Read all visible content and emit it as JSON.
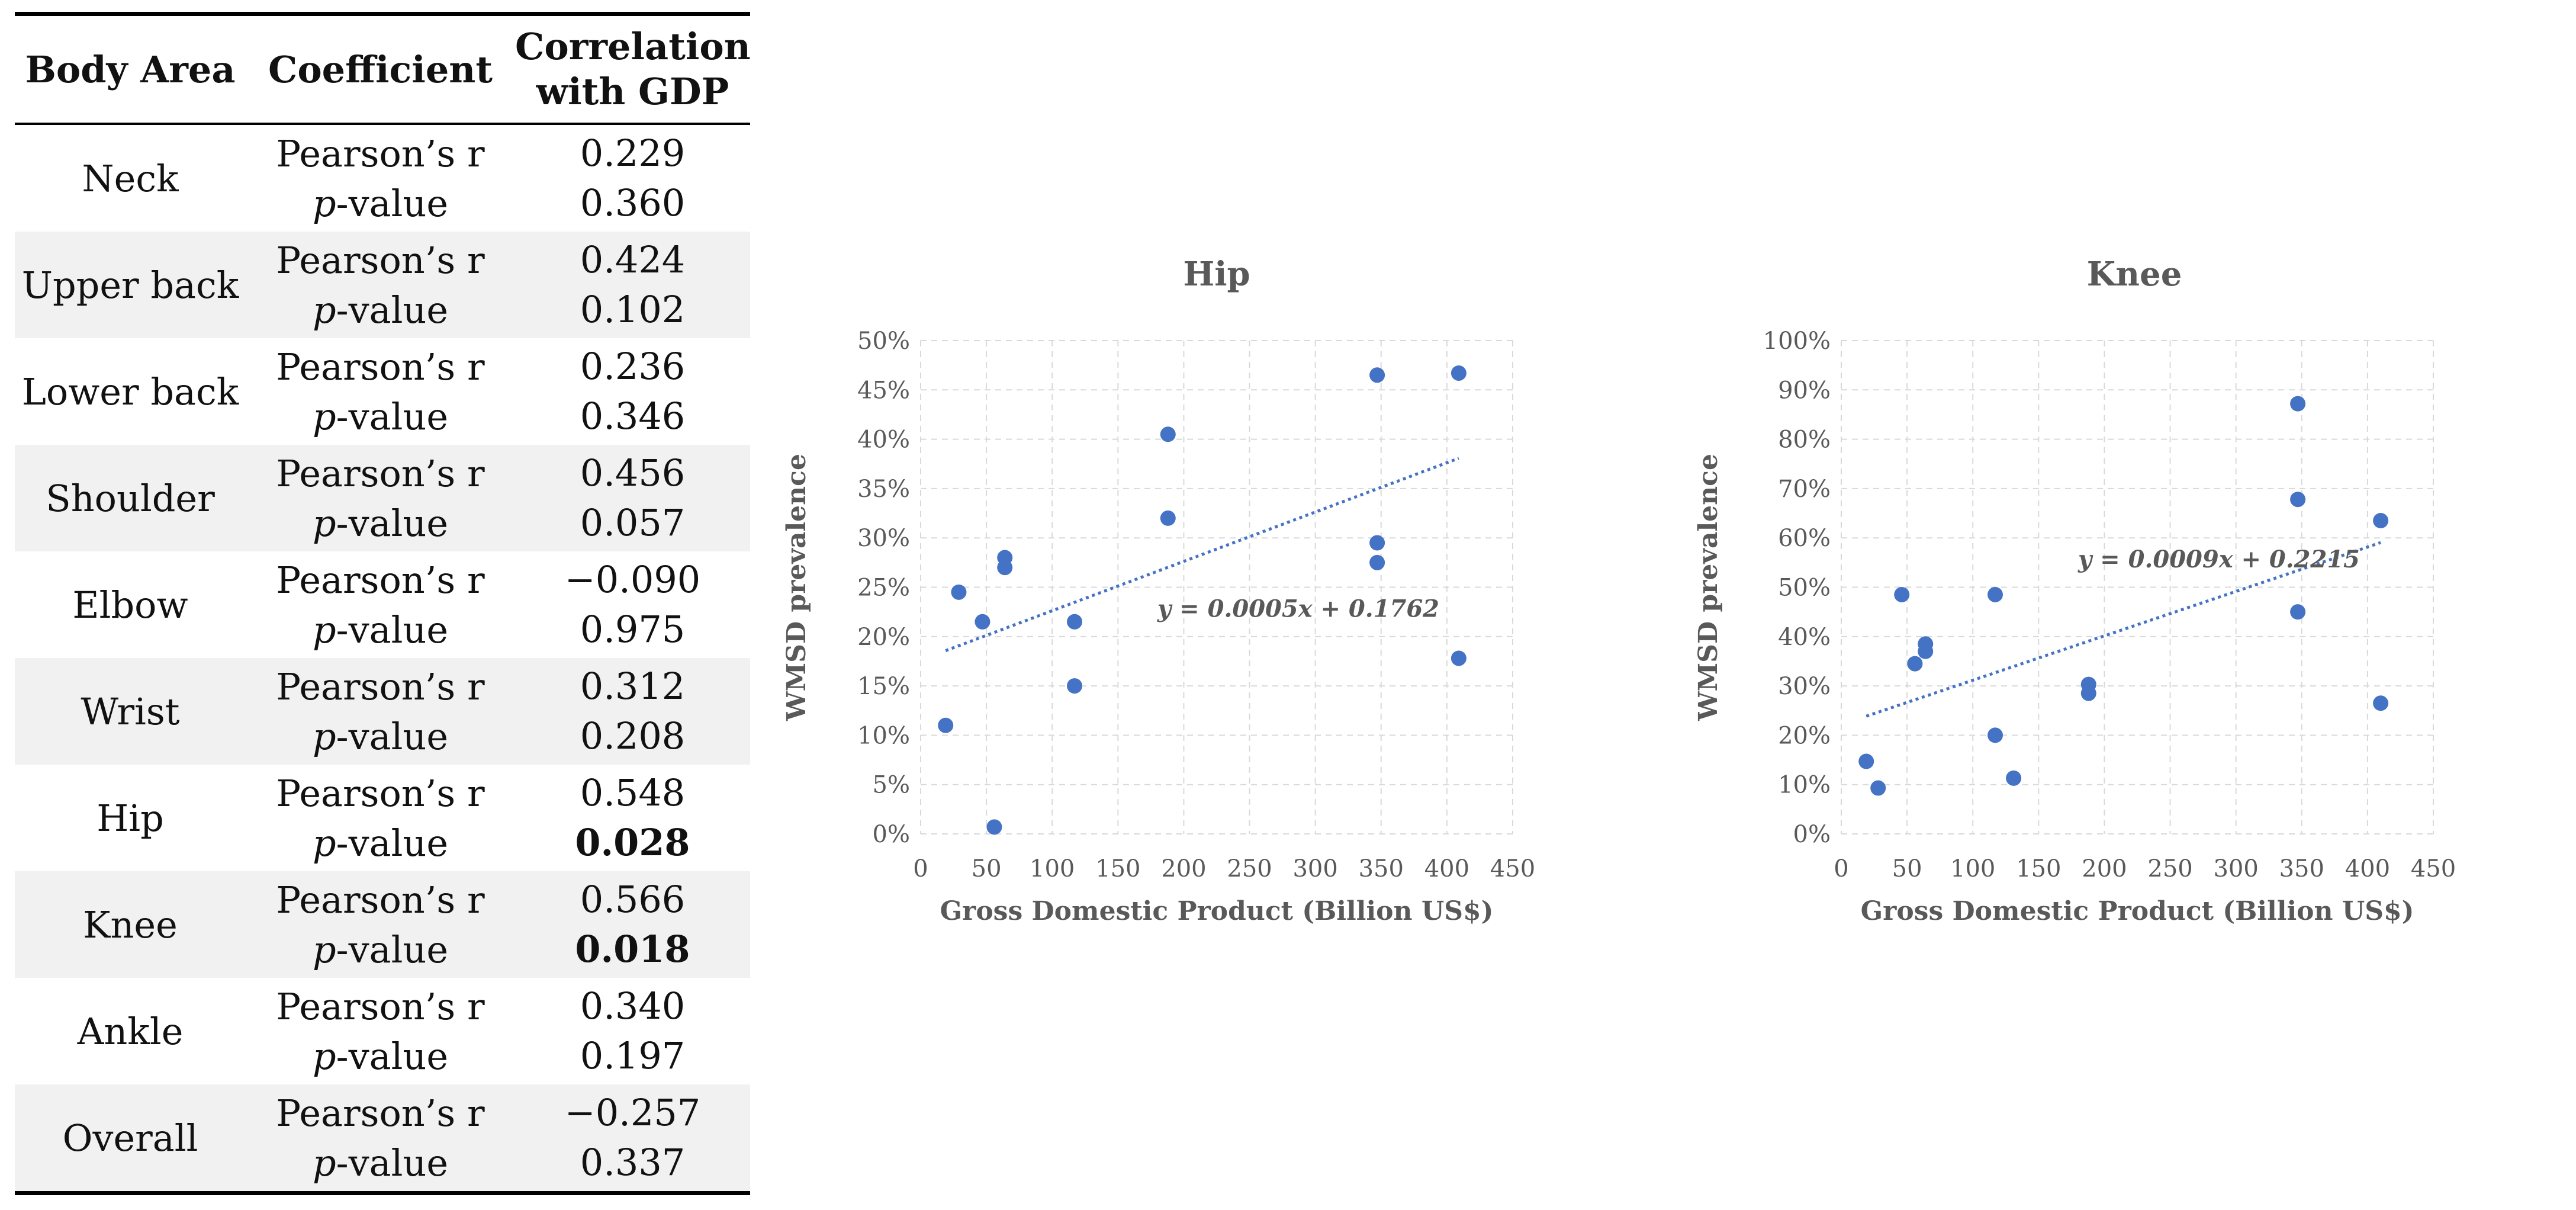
{
  "table": {
    "headers": [
      "Body Area",
      "Coefficient",
      "Correlation",
      "with GDP"
    ],
    "coef_labels": {
      "pearson": "Pearson’s r",
      "p_prefix": "p",
      "p_suffix": "-value"
    },
    "rows": [
      {
        "area": "Neck",
        "r": "0.229",
        "p": "0.360",
        "p_bold": false
      },
      {
        "area": "Upper back",
        "r": "0.424",
        "p": "0.102",
        "p_bold": false
      },
      {
        "area": "Lower back",
        "r": "0.236",
        "p": "0.346",
        "p_bold": false
      },
      {
        "area": "Shoulder",
        "r": "0.456",
        "p": "0.057",
        "p_bold": false
      },
      {
        "area": "Elbow",
        "r": "−0.090",
        "p": "0.975",
        "p_bold": false
      },
      {
        "area": "Wrist",
        "r": "0.312",
        "p": "0.208",
        "p_bold": false
      },
      {
        "area": "Hip",
        "r": "0.548",
        "p": "0.028",
        "p_bold": true
      },
      {
        "area": "Knee",
        "r": "0.566",
        "p": "0.018",
        "p_bold": true
      },
      {
        "area": "Ankle",
        "r": "0.340",
        "p": "0.197",
        "p_bold": false
      },
      {
        "area": "Overall",
        "r": "−0.257",
        "p": "0.337",
        "p_bold": false
      }
    ]
  },
  "chart_data": [
    {
      "type": "scatter",
      "title": "Hip",
      "xlabel": "Gross Domestic Product (Billion US$)",
      "ylabel": "WMSD prevalence",
      "xlim": [
        0,
        450
      ],
      "ylim": [
        0,
        0.5
      ],
      "xticks": [
        "0",
        "50",
        "100",
        "150",
        "200",
        "250",
        "300",
        "350",
        "400",
        "450"
      ],
      "yticks": [
        "0%",
        "5%",
        "10%",
        "15%",
        "20%",
        "25%",
        "30%",
        "35%",
        "40%",
        "45%",
        "50%"
      ],
      "grid": true,
      "point_color": "#4472c4",
      "x": [
        19,
        29,
        47,
        56,
        64,
        64,
        117,
        117,
        188,
        188,
        347,
        347,
        347,
        409,
        409
      ],
      "y": [
        0.11,
        0.245,
        0.215,
        0.007,
        0.28,
        0.27,
        0.215,
        0.15,
        0.405,
        0.32,
        0.465,
        0.295,
        0.275,
        0.467,
        0.178
      ],
      "trendline": {
        "slope": 0.0005,
        "intercept": 0.1762,
        "x_range": [
          19,
          409
        ],
        "label": "y = 0.0005x + 0.1762",
        "label_at": [
          180,
          0.22
        ]
      }
    },
    {
      "type": "scatter",
      "title": "Knee",
      "xlabel": "Gross Domestic Product (Billion US$)",
      "ylabel": "WMSD prevalence",
      "xlim": [
        0,
        450
      ],
      "ylim": [
        0,
        1.0
      ],
      "xticks": [
        "0",
        "50",
        "100",
        "150",
        "200",
        "250",
        "300",
        "350",
        "400",
        "450"
      ],
      "yticks": [
        "0%",
        "10%",
        "20%",
        "30%",
        "40%",
        "50%",
        "60%",
        "70%",
        "80%",
        "90%",
        "100%"
      ],
      "grid": true,
      "point_color": "#4472c4",
      "x": [
        19,
        28,
        46,
        56,
        64,
        64,
        117,
        117,
        131,
        188,
        188,
        347,
        347,
        347,
        410,
        410
      ],
      "y": [
        0.147,
        0.093,
        0.485,
        0.345,
        0.385,
        0.37,
        0.485,
        0.2,
        0.113,
        0.303,
        0.285,
        0.872,
        0.678,
        0.45,
        0.635,
        0.265
      ],
      "trendline": {
        "slope": 0.0009,
        "intercept": 0.2215,
        "x_range": [
          19,
          410
        ],
        "label": "y = 0.0009x + 0.2215",
        "label_at": [
          180,
          0.54
        ]
      }
    }
  ]
}
